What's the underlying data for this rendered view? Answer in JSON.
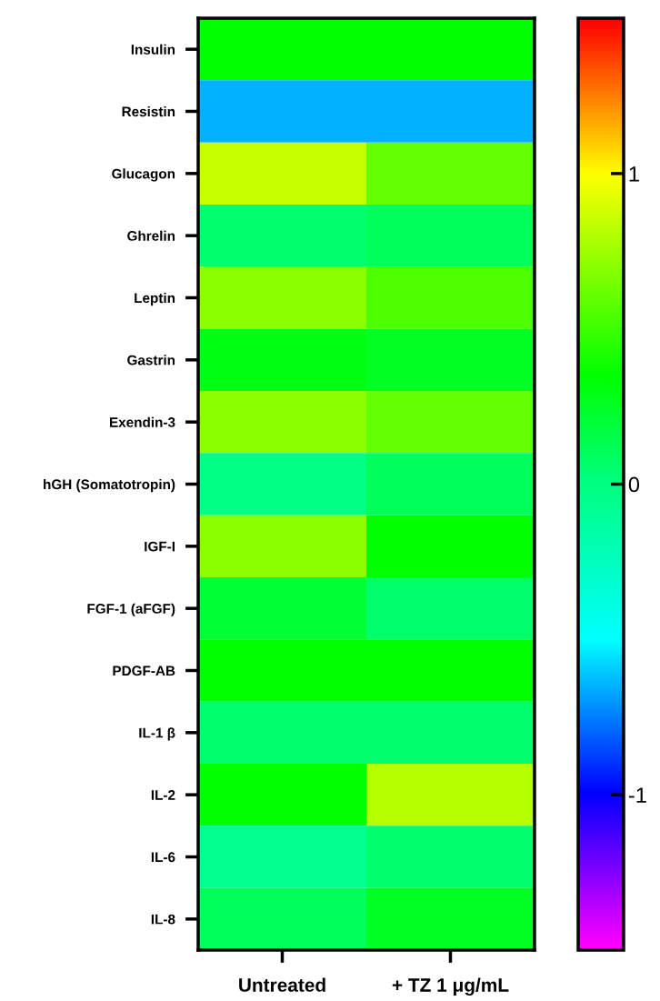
{
  "chart_data": {
    "type": "heatmap",
    "categories": [
      "Untreated",
      "+ TZ 1 μg/mL"
    ],
    "y_categories": [
      "Insulin",
      "Resistin",
      "Glucagon",
      "Ghrelin",
      "Leptin",
      "Gastrin",
      "Exendin-3",
      "hGH (Somatotropin)",
      "IGF-I",
      "FGF-1 (aFGF)",
      "PDGF-AB",
      "IL-1 β",
      "IL-2",
      "IL-6",
      "IL-8"
    ],
    "cells": [
      [
        0.35,
        0.35
      ],
      [
        -0.65,
        -0.65
      ],
      [
        0.85,
        0.6
      ],
      [
        0.05,
        0.1
      ],
      [
        0.7,
        0.55
      ],
      [
        0.3,
        0.25
      ],
      [
        0.7,
        0.6
      ],
      [
        -0.02,
        0.1
      ],
      [
        0.7,
        0.35
      ],
      [
        0.2,
        0.05
      ],
      [
        0.35,
        0.35
      ],
      [
        0.05,
        0.05
      ],
      [
        0.35,
        0.8
      ],
      [
        -0.05,
        0.05
      ],
      [
        0.1,
        0.25
      ]
    ],
    "clim": [
      -1.5,
      1.5
    ],
    "cticks": [
      {
        "value": -1,
        "label": "-1"
      },
      0,
      1
    ]
  }
}
